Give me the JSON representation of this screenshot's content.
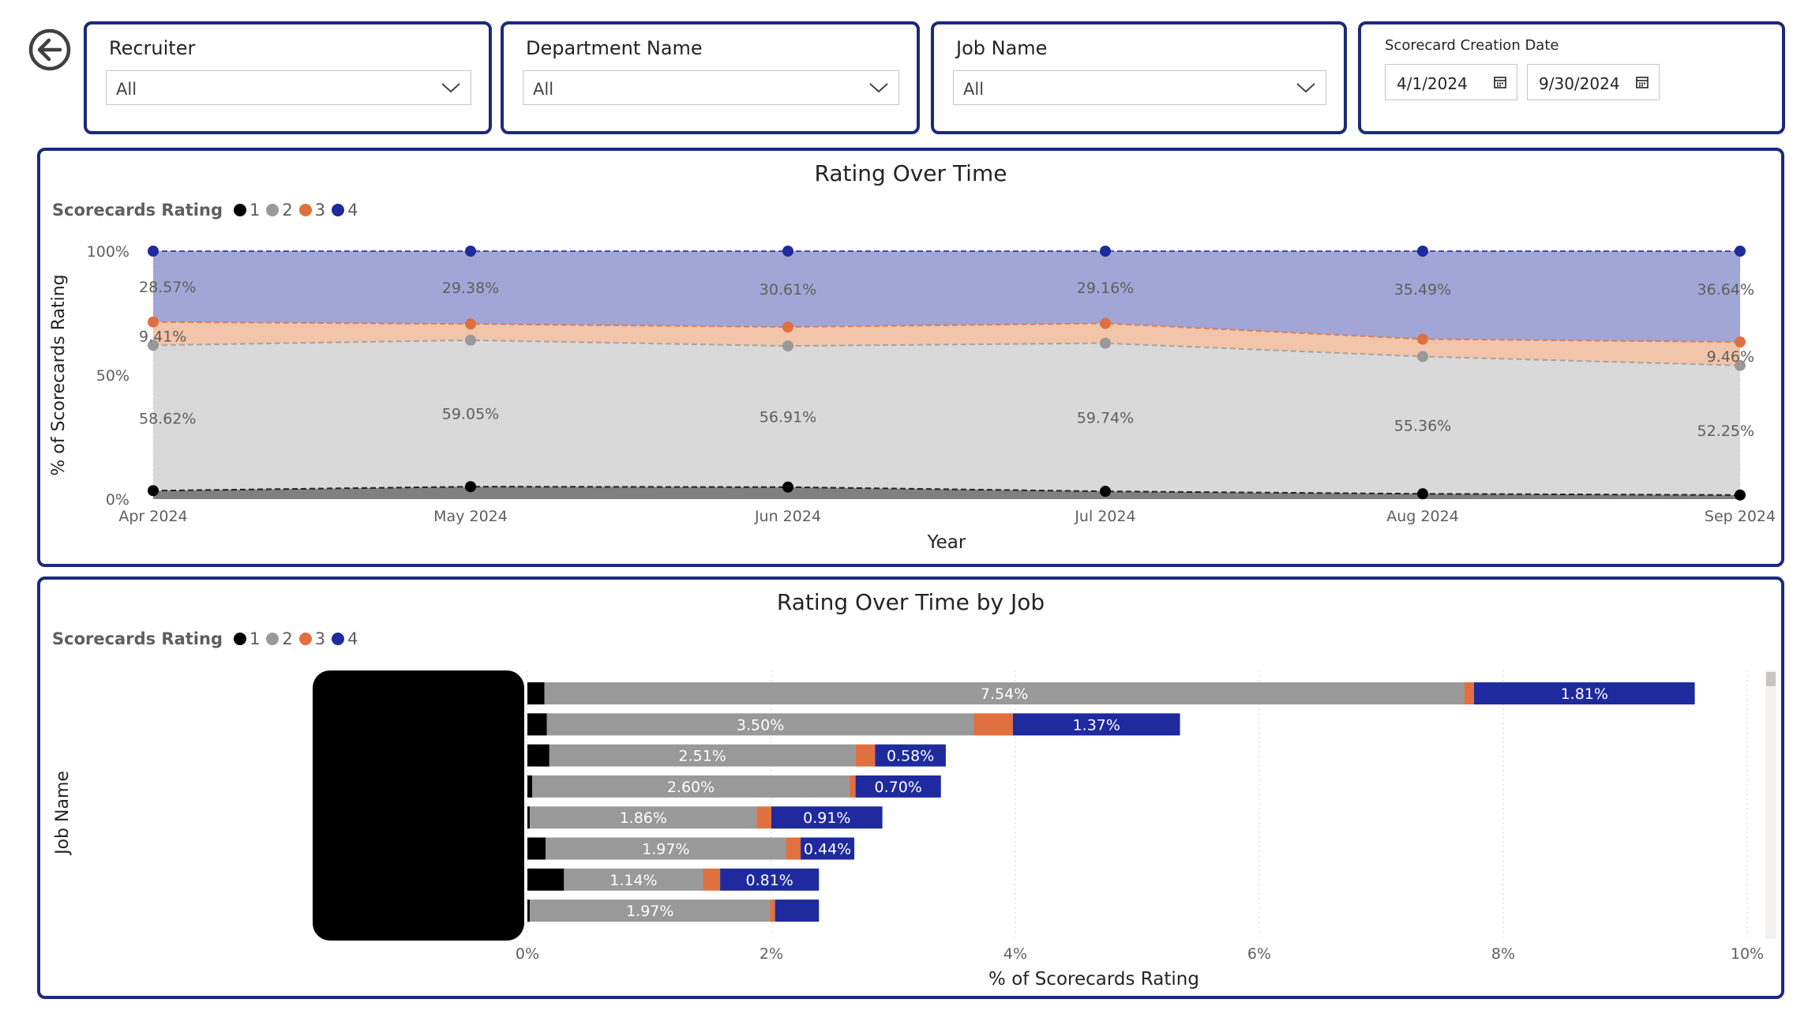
{
  "filters": {
    "recruiter": {
      "title": "Recruiter",
      "value": "All"
    },
    "department": {
      "title": "Department Name",
      "value": "All"
    },
    "job": {
      "title": "Job Name",
      "value": "All"
    },
    "date": {
      "title": "Scorecard Creation Date",
      "start": "4/1/2024",
      "end": "9/30/2024"
    }
  },
  "legend": {
    "title": "Scorecards Rating",
    "items": [
      {
        "label": "1",
        "color": "#000000"
      },
      {
        "label": "2",
        "color": "#999999"
      },
      {
        "label": "3",
        "color": "#e07040"
      },
      {
        "label": "4",
        "color": "#1f2a9e"
      }
    ]
  },
  "chart_data": [
    {
      "type": "area",
      "title": "Rating Over Time",
      "xlabel": "Year",
      "ylabel": "% of Scorecards Rating",
      "x": [
        "Apr 2024",
        "May 2024",
        "Jun 2024",
        "Jul 2024",
        "Aug 2024",
        "Sep 2024"
      ],
      "yticks": [
        "0%",
        "50%",
        "100%"
      ],
      "ylim": [
        0,
        100
      ],
      "stacked": true,
      "series": [
        {
          "name": "1",
          "values": [
            3.4,
            5.03,
            4.84,
            3.14,
            2.14,
            1.65
          ]
        },
        {
          "name": "2",
          "values": [
            58.62,
            59.05,
            56.91,
            59.74,
            55.36,
            52.25
          ],
          "labels": [
            "58.62%",
            "59.05%",
            "56.91%",
            "59.74%",
            "55.36%",
            "52.25%"
          ]
        },
        {
          "name": "3",
          "values": [
            9.41,
            6.54,
            7.64,
            7.96,
            7.01,
            9.46
          ],
          "labels": [
            "9.41%",
            "",
            "",
            "",
            "",
            "9.46%"
          ]
        },
        {
          "name": "4",
          "values": [
            28.57,
            29.38,
            30.61,
            29.16,
            35.49,
            36.64
          ],
          "labels": [
            "28.57%",
            "29.38%",
            "30.61%",
            "29.16%",
            "35.49%",
            "36.64%"
          ]
        }
      ]
    },
    {
      "type": "bar",
      "orientation": "horizontal",
      "stacked": true,
      "title": "Rating Over Time by Job",
      "xlabel": "% of Scorecards Rating",
      "ylabel": "Job Name",
      "xticks": [
        "0%",
        "2%",
        "4%",
        "6%",
        "8%",
        "10%"
      ],
      "xlim": [
        0,
        10
      ],
      "rows": [
        {
          "segments": [
            0.14,
            7.54,
            0.08,
            1.81
          ],
          "labels": [
            "",
            "7.54%",
            "",
            "1.81%"
          ]
        },
        {
          "segments": [
            0.16,
            3.5,
            0.32,
            1.37
          ],
          "labels": [
            "",
            "3.50%",
            "",
            "1.37%"
          ]
        },
        {
          "segments": [
            0.18,
            2.51,
            0.16,
            0.58
          ],
          "labels": [
            "",
            "2.51%",
            "",
            "0.58%"
          ]
        },
        {
          "segments": [
            0.04,
            2.6,
            0.05,
            0.7
          ],
          "labels": [
            "",
            "2.60%",
            "",
            "0.70%"
          ]
        },
        {
          "segments": [
            0.02,
            1.86,
            0.12,
            0.91
          ],
          "labels": [
            "",
            "1.86%",
            "",
            "0.91%"
          ]
        },
        {
          "segments": [
            0.15,
            1.97,
            0.12,
            0.44
          ],
          "labels": [
            "",
            "1.97%",
            "",
            "0.44%"
          ]
        },
        {
          "segments": [
            0.3,
            1.14,
            0.14,
            0.81
          ],
          "labels": [
            "",
            "1.14%",
            "",
            "0.81%"
          ]
        },
        {
          "segments": [
            0.02,
            1.97,
            0.04,
            0.36
          ],
          "labels": [
            "",
            "1.97%",
            "",
            ""
          ]
        }
      ]
    }
  ]
}
